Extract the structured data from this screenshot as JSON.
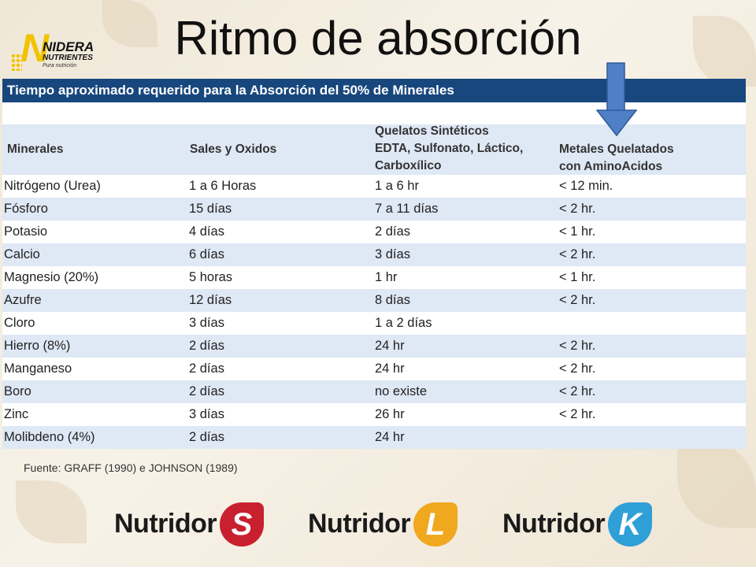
{
  "slide": {
    "title": "Ritmo de absorción",
    "logo": {
      "initial": "N",
      "brand": "NIDERA",
      "sub": "NUTRIENTES",
      "tagline": "Pura nutrición"
    },
    "table": {
      "caption": "Tiempo aproximado requerido para la Absorción del 50% de Minerales",
      "headers": {
        "c1": "Minerales",
        "c2": "Sales y Oxidos",
        "c3_l1": "Quelatos Sintéticos",
        "c3_l2": "EDTA, Sulfonato, Láctico,",
        "c3_l3": "Carboxílico",
        "c4_l1": "Metales Quelatados",
        "c4_l2": "con AminoAcidos"
      },
      "rows": [
        [
          "Nitrógeno (Urea)",
          "1 a 6 Horas",
          "1 a 6 hr",
          "< 12 min."
        ],
        [
          "Fósforo",
          "15 días",
          "7 a 11 días",
          "< 2 hr."
        ],
        [
          "Potasio",
          "4 días",
          "2 días",
          "< 1 hr."
        ],
        [
          "Calcio",
          "6 días",
          "3 días",
          "< 2 hr."
        ],
        [
          "Magnesio (20%)",
          "5 horas",
          "1 hr",
          "< 1 hr."
        ],
        [
          "Azufre",
          "12 días",
          "8 días",
          "< 2 hr."
        ],
        [
          "Cloro",
          "3 días",
          "1 a 2 días",
          ""
        ],
        [
          "Hierro (8%)",
          "2 días",
          "24 hr",
          "< 2 hr."
        ],
        [
          "Manganeso",
          "2 días",
          "24 hr",
          "< 2 hr."
        ],
        [
          "Boro",
          "2 días",
          "no existe",
          "< 2 hr."
        ],
        [
          "Zinc",
          "3 días",
          "26 hr",
          "< 2 hr."
        ],
        [
          "Molibdeno (4%)",
          "2 días",
          "24 hr",
          ""
        ]
      ]
    },
    "source": "Fuente: GRAFF (1990) e JOHNSON (1989)",
    "products": [
      {
        "name": "Nutridor",
        "letter": "S",
        "color": "#c8202f"
      },
      {
        "name": "Nutridor",
        "letter": "L",
        "color": "#f0a81e"
      },
      {
        "name": "Nutridor",
        "letter": "K",
        "color": "#2f9fd8"
      }
    ]
  }
}
